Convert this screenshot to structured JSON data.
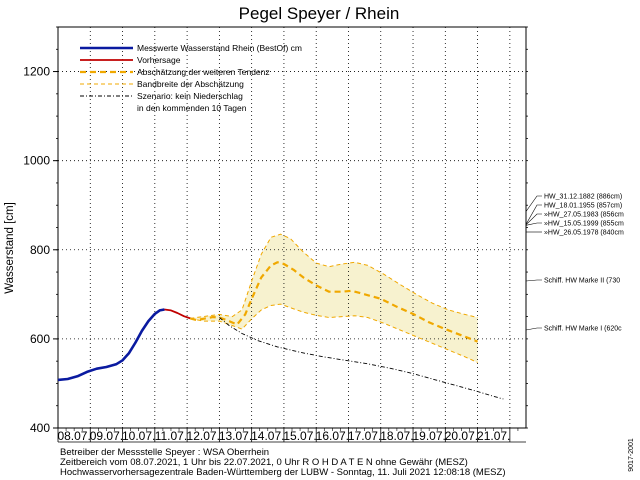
{
  "chart_data": {
    "type": "line",
    "title": "Pegel Speyer / Rhein",
    "ylabel": "Wasserstand [cm]",
    "xlabel": "",
    "ylim": [
      400,
      1300
    ],
    "yticks": [
      400,
      600,
      800,
      1000,
      1200
    ],
    "xlim": [
      0,
      14.5
    ],
    "x_ticks": [
      "08.07.",
      "09.07.",
      "10.07.",
      "11.07.",
      "12.07.",
      "13.07.",
      "14.07.",
      "15.07.",
      "16.07.",
      "17.07.",
      "18.07.",
      "19.07.",
      "20.07.",
      "21.07."
    ],
    "grid": true,
    "legend": "top-left",
    "series": [
      {
        "name": "Messwerte Wasserstand Rhein (BestOf)  cm",
        "color": "#0a1aa0",
        "style": "solid",
        "points": [
          [
            0,
            508
          ],
          [
            0.3,
            510
          ],
          [
            0.6,
            516
          ],
          [
            0.9,
            526
          ],
          [
            1.2,
            533
          ],
          [
            1.5,
            537
          ],
          [
            1.8,
            543
          ],
          [
            2.0,
            552
          ],
          [
            2.2,
            568
          ],
          [
            2.4,
            592
          ],
          [
            2.6,
            618
          ],
          [
            2.8,
            640
          ],
          [
            3.0,
            656
          ],
          [
            3.15,
            664
          ],
          [
            3.3,
            666
          ]
        ]
      },
      {
        "name": "Vorhersage",
        "color": "#c00000",
        "style": "solid",
        "points": [
          [
            3.3,
            666
          ],
          [
            3.5,
            664
          ],
          [
            3.7,
            658
          ],
          [
            3.9,
            651
          ],
          [
            4.1,
            646
          ]
        ]
      },
      {
        "name": "Abschätzung der weiteren Tendenz",
        "color": "#f0a800",
        "style": "dashed",
        "points": [
          [
            4.1,
            646
          ],
          [
            4.3,
            642
          ],
          [
            4.5,
            645
          ],
          [
            4.8,
            649
          ],
          [
            5.0,
            648
          ],
          [
            5.3,
            640
          ],
          [
            5.55,
            632
          ],
          [
            5.8,
            655
          ],
          [
            6.0,
            690
          ],
          [
            6.3,
            738
          ],
          [
            6.6,
            765
          ],
          [
            6.8,
            772
          ],
          [
            7.0,
            768
          ],
          [
            7.3,
            755
          ],
          [
            7.6,
            738
          ],
          [
            8.0,
            720
          ],
          [
            8.4,
            706
          ],
          [
            8.8,
            706
          ],
          [
            9.1,
            708
          ],
          [
            9.5,
            700
          ],
          [
            10.0,
            690
          ],
          [
            10.5,
            672
          ],
          [
            11.0,
            656
          ],
          [
            11.5,
            637
          ],
          [
            12.0,
            622
          ],
          [
            12.5,
            608
          ],
          [
            13.0,
            594
          ]
        ]
      },
      {
        "name": "Bandbreite der Abschätzung",
        "color": "#f0a800",
        "style": "dashed-thin",
        "upper": [
          [
            4.1,
            646
          ],
          [
            4.5,
            650
          ],
          [
            5.0,
            655
          ],
          [
            5.4,
            650
          ],
          [
            5.7,
            665
          ],
          [
            6.0,
            730
          ],
          [
            6.3,
            790
          ],
          [
            6.6,
            828
          ],
          [
            6.9,
            835
          ],
          [
            7.2,
            825
          ],
          [
            7.6,
            795
          ],
          [
            8.0,
            770
          ],
          [
            8.4,
            762
          ],
          [
            8.8,
            768
          ],
          [
            9.2,
            772
          ],
          [
            9.6,
            765
          ],
          [
            10.1,
            745
          ],
          [
            10.6,
            722
          ],
          [
            11.1,
            700
          ],
          [
            11.6,
            680
          ],
          [
            12.1,
            665
          ],
          [
            12.6,
            655
          ],
          [
            13.0,
            648
          ]
        ],
        "lower": [
          [
            4.1,
            646
          ],
          [
            4.5,
            640
          ],
          [
            5.0,
            640
          ],
          [
            5.4,
            630
          ],
          [
            5.7,
            622
          ],
          [
            6.0,
            645
          ],
          [
            6.3,
            665
          ],
          [
            6.6,
            675
          ],
          [
            6.9,
            678
          ],
          [
            7.2,
            670
          ],
          [
            7.6,
            660
          ],
          [
            8.0,
            653
          ],
          [
            8.4,
            648
          ],
          [
            8.8,
            650
          ],
          [
            9.2,
            652
          ],
          [
            9.6,
            648
          ],
          [
            10.1,
            635
          ],
          [
            10.6,
            620
          ],
          [
            11.1,
            605
          ],
          [
            11.6,
            590
          ],
          [
            12.1,
            575
          ],
          [
            12.6,
            560
          ],
          [
            13.0,
            547
          ]
        ]
      },
      {
        "name": "Szenario: kein Niederschlag",
        "name2": "in den kommenden 10 Tagen",
        "color": "#000000",
        "style": "dash-dot",
        "points": [
          [
            5.0,
            648
          ],
          [
            5.3,
            630
          ],
          [
            5.7,
            612
          ],
          [
            6.2,
            596
          ],
          [
            6.8,
            582
          ],
          [
            7.5,
            570
          ],
          [
            8.2,
            560
          ],
          [
            8.9,
            552
          ],
          [
            9.6,
            544
          ],
          [
            10.3,
            534
          ],
          [
            11.0,
            522
          ],
          [
            11.7,
            508
          ],
          [
            12.4,
            494
          ],
          [
            13.0,
            482
          ],
          [
            13.5,
            471
          ],
          [
            13.8,
            465
          ]
        ]
      }
    ],
    "side_markers": [
      {
        "label": "HW_31.12.1882 (886cm)",
        "value": 886
      },
      {
        "label": "HW_18.01.1955 (857cm)",
        "value": 857
      },
      {
        "label": "»HW_27.05.1983 (856cm",
        "value": 856
      },
      {
        "label": "»HW_15.05.1999 (855cm",
        "value": 855
      },
      {
        "label": "»HW_26.05.1978 (840cm",
        "value": 840
      },
      {
        "label": "Schiff. HW Marke II (730",
        "value": 730
      },
      {
        "label": "Schiff. HW Marke I (620c",
        "value": 620
      }
    ],
    "footer": [
      "Betreiber der Messstelle Speyer : WSA Oberrhein",
      "Zeitbereich vom 08.07.2021, 1 Uhr bis 22.07.2021, 0 Uhr     R O H D A T E N ohne Gewähr (MESZ)",
      "Hochwasservorhersagezentrale Baden-Württemberg der LUBW - Sonntag, 11. Juli 2021 12:08:18 (MESZ)"
    ],
    "side_note": "9017-2001"
  },
  "colors": {
    "band_fill": "#f7f2cf",
    "grid": "#000000"
  }
}
